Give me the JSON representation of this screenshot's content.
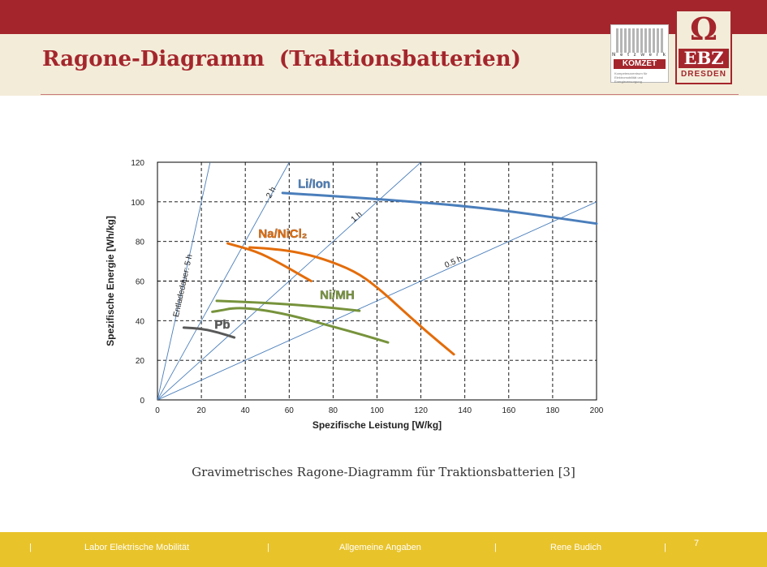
{
  "header": {
    "title": "Ragone-Diagramm  (Traktionsbatterien)",
    "logo_komzet": {
      "network_text": "N e t z w e r k",
      "name": "KOMZET",
      "subtext": "Kompetenzzentrum für Elektromobilität und Energieversorgung"
    },
    "logo_ebz": {
      "symbol": "Ω",
      "name": "EBZ",
      "city": "DRESDEN"
    },
    "colors": {
      "brand_red": "#a4262c",
      "header_band": "#f3ecd9",
      "footer_yellow": "#e8c32a"
    }
  },
  "chart_data": {
    "type": "line",
    "xlabel": "Spezifische Leistung [W/kg]",
    "ylabel": "Spezifische Energie [Wh/kg]",
    "xlim": [
      0,
      200
    ],
    "ylim": [
      0,
      120
    ],
    "xticks": [
      0,
      20,
      40,
      60,
      80,
      100,
      120,
      140,
      160,
      180,
      200
    ],
    "yticks": [
      0,
      20,
      40,
      60,
      80,
      100,
      120
    ],
    "grid": "dashed",
    "duration_lines": [
      {
        "label": "Entladedauer:  5 h",
        "hours": 5
      },
      {
        "label": "2 h",
        "hours": 2
      },
      {
        "label": "1 h",
        "hours": 1
      },
      {
        "label": "0.5 h",
        "hours": 0.5
      }
    ],
    "series": [
      {
        "name": "Li/Ion",
        "color": "#4a7ebb",
        "curves": [
          [
            [
              57,
              104.5
            ],
            [
              100,
              101.5
            ],
            [
              150,
              97
            ],
            [
              200,
              89
            ]
          ]
        ]
      },
      {
        "name": "Na/NiCl₂",
        "color": "#e36c0a",
        "curves": [
          [
            [
              32,
              79
            ],
            [
              45,
              75
            ],
            [
              55,
              69.5
            ],
            [
              70,
              60
            ]
          ],
          [
            [
              42,
              77
            ],
            [
              50,
              76.5
            ],
            [
              62,
              75
            ],
            [
              75,
              71.5
            ],
            [
              90,
              65
            ],
            [
              100,
              57
            ],
            [
              110,
              47
            ],
            [
              122,
              35
            ],
            [
              135,
              23
            ]
          ]
        ]
      },
      {
        "name": "Ni/MH",
        "color": "#77933c",
        "curves": [
          [
            [
              27,
              50
            ],
            [
              50,
              49
            ],
            [
              75,
              47
            ],
            [
              92,
              45
            ]
          ],
          [
            [
              25,
              44.5
            ],
            [
              28,
              45
            ],
            [
              35,
              46.5
            ],
            [
              45,
              46
            ],
            [
              60,
              43
            ],
            [
              80,
              37
            ],
            [
              93,
              33
            ],
            [
              105,
              29
            ]
          ]
        ]
      },
      {
        "name": "Pb",
        "color": "#595959",
        "curves": [
          [
            [
              12,
              36.5
            ],
            [
              20,
              36
            ],
            [
              28,
              34
            ],
            [
              35,
              31.5
            ]
          ]
        ]
      }
    ]
  },
  "caption": "Gravimetrisches Ragone-Diagramm für Traktionsbatterien [3]",
  "footer": {
    "sep": "|",
    "item1": "Labor Elektrische Mobilität",
    "item2": "Allgemeine Angaben",
    "item3": "Rene Budich",
    "page": "7"
  }
}
